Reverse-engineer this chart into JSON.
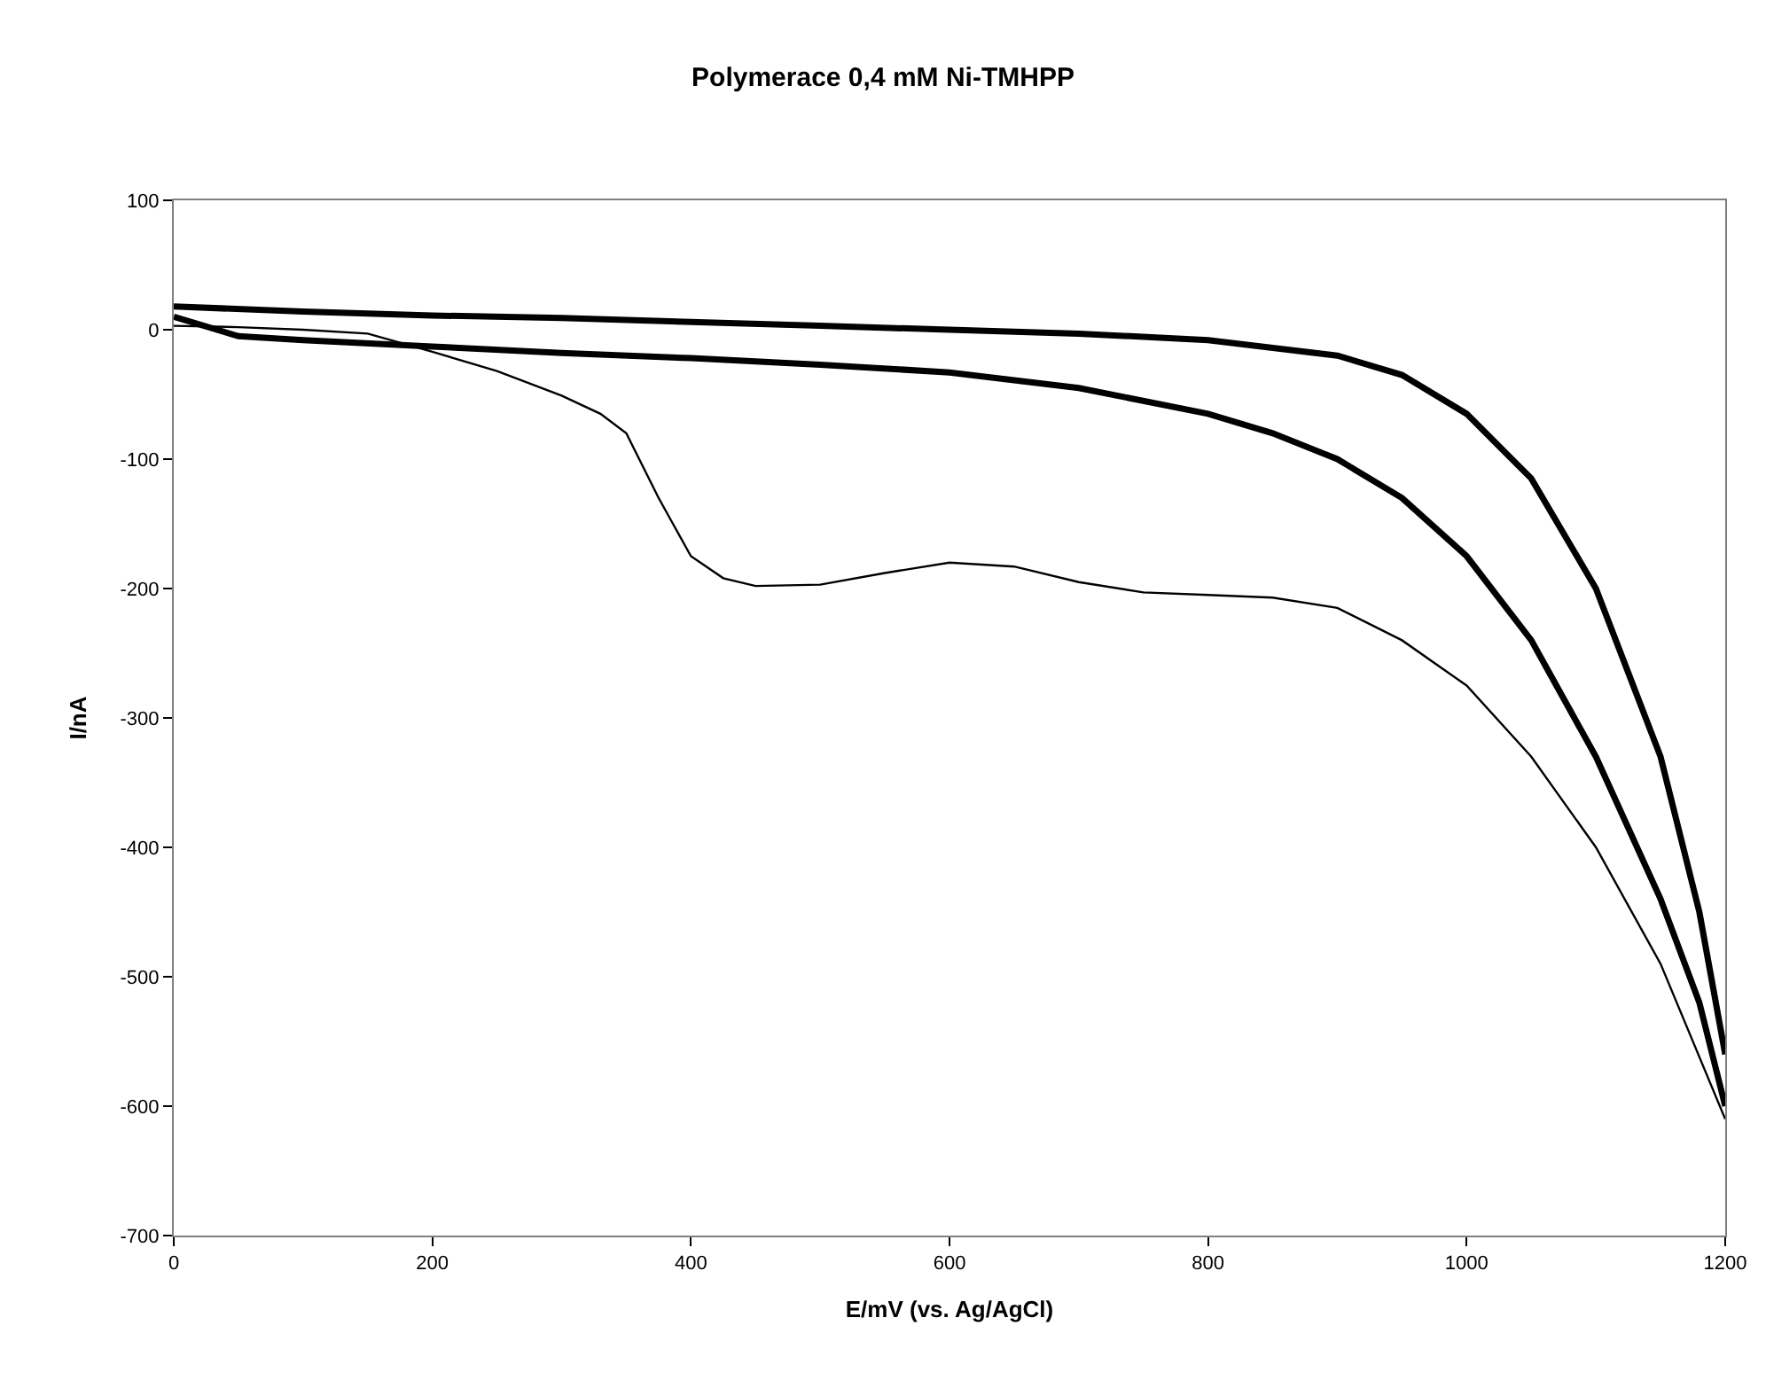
{
  "chart_data": {
    "type": "line",
    "title": "Polymerace 0,4 mM Ni-TMHPP",
    "xlabel": "E/mV (vs. Ag/AgCl)",
    "ylabel": "I/nA",
    "xlim": [
      0,
      1200
    ],
    "xticks": [
      0,
      200,
      400,
      600,
      800,
      1000,
      1200
    ],
    "ylim": [
      -700,
      100
    ],
    "yticks": [
      -700,
      -600,
      -500,
      -400,
      -300,
      -200,
      -100,
      0,
      100
    ],
    "marker": "none",
    "line_style": "solid",
    "series": [
      {
        "color": "#000000",
        "x": [
          0,
          50,
          100,
          150,
          200,
          250,
          300,
          330,
          350,
          375,
          400,
          425,
          450,
          500,
          550,
          600,
          650,
          700,
          750,
          800,
          850,
          900,
          950,
          1000,
          1050,
          1100,
          1150,
          1200
        ],
        "values": [
          3,
          2,
          0,
          -3,
          -17,
          -32,
          -51,
          -65,
          -80,
          -130,
          -175,
          -192,
          -198,
          -197,
          -188,
          -180,
          -183,
          -195,
          -203,
          -205,
          -207,
          -215,
          -240,
          -275,
          -330,
          -400,
          -490,
          -610
        ]
      },
      {
        "color": "#000000",
        "x": [
          0,
          50,
          100,
          200,
          300,
          400,
          500,
          600,
          700,
          800,
          850,
          900,
          950,
          1000,
          1050,
          1100,
          1150,
          1180,
          1200
        ],
        "values": [
          10,
          -5,
          -8,
          -13,
          -18,
          -22,
          -27,
          -33,
          -45,
          -65,
          -80,
          -100,
          -130,
          -175,
          -240,
          -330,
          -440,
          -520,
          -600
        ]
      },
      {
        "color": "#000000",
        "x": [
          1200,
          1180,
          1150,
          1100,
          1050,
          1000,
          950,
          900,
          800,
          700,
          600,
          500,
          400,
          300,
          200,
          100,
          0
        ],
        "values": [
          -560,
          -450,
          -330,
          -200,
          -115,
          -65,
          -35,
          -20,
          -8,
          -3,
          0,
          3,
          6,
          9,
          11,
          14,
          18
        ]
      }
    ]
  }
}
